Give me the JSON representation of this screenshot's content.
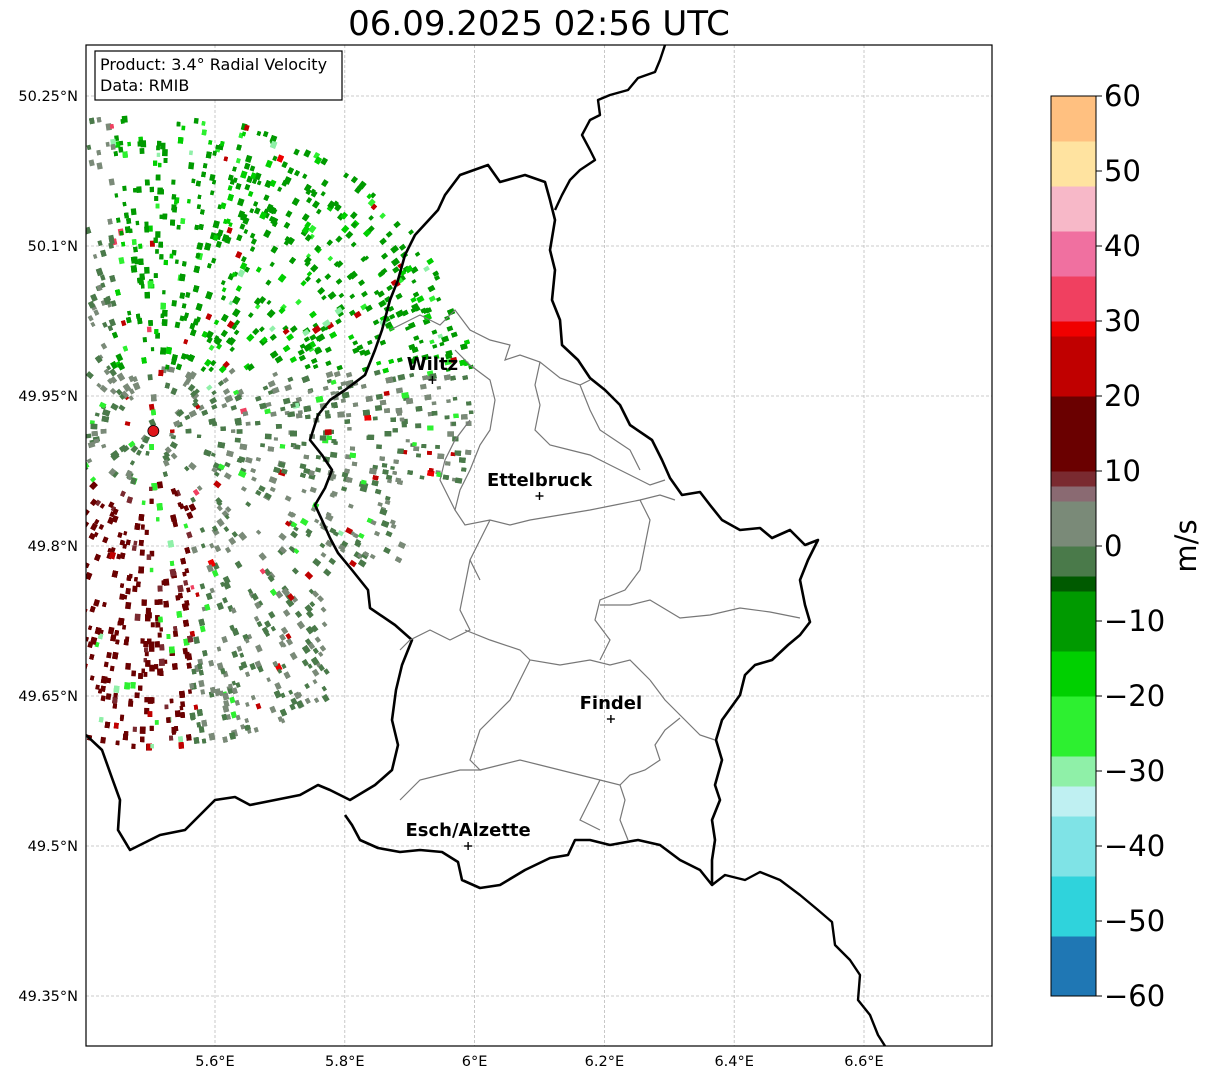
{
  "title": "06.09.2025 02:56 UTC",
  "info_box": {
    "product": "Product: 3.4° Radial Velocity",
    "data": "Data: RMIB"
  },
  "map": {
    "lon_range": [
      5.4,
      6.8
    ],
    "lat_range": [
      49.29,
      50.3
    ],
    "lon_ticks": [
      {
        "value": 5.6,
        "label": "5.6°E"
      },
      {
        "value": 5.8,
        "label": "5.8°E"
      },
      {
        "value": 6.0,
        "label": "6°E"
      },
      {
        "value": 6.2,
        "label": "6.2°E"
      },
      {
        "value": 6.4,
        "label": "6.4°E"
      },
      {
        "value": 6.6,
        "label": "6.6°E"
      }
    ],
    "lat_ticks": [
      {
        "value": 50.25,
        "label": "50.25°N"
      },
      {
        "value": 50.1,
        "label": "50.1°N"
      },
      {
        "value": 49.95,
        "label": "49.95°N"
      },
      {
        "value": 49.8,
        "label": "49.8°N"
      },
      {
        "value": 49.65,
        "label": "49.65°N"
      },
      {
        "value": 49.5,
        "label": "49.5°N"
      },
      {
        "value": 49.35,
        "label": "49.35°N"
      }
    ],
    "radar_site": {
      "lon": 5.505,
      "lat": 49.915,
      "color": "#e0161b"
    },
    "cities": [
      {
        "name": "Wiltz",
        "lon": 5.935,
        "lat": 49.966
      },
      {
        "name": "Ettelbruck",
        "lon": 6.1,
        "lat": 49.85
      },
      {
        "name": "Findel",
        "lon": 6.21,
        "lat": 49.627
      },
      {
        "name": "Esch/Alzette",
        "lon": 5.99,
        "lat": 49.5
      }
    ]
  },
  "colorbar": {
    "label": "m/s",
    "min": -60,
    "max": 60,
    "ticks": [
      60,
      50,
      40,
      30,
      20,
      10,
      0,
      -10,
      -20,
      -30,
      -40,
      -50,
      -60
    ],
    "tick_labels": [
      "60",
      "50",
      "40",
      "30",
      "20",
      "10",
      "0",
      "−10",
      "−20",
      "−30",
      "−40",
      "−50",
      "−60"
    ],
    "stops": [
      {
        "v": -60,
        "c": "#1f77b4"
      },
      {
        "v": -52,
        "c": "#2fd3dc"
      },
      {
        "v": -44,
        "c": "#7fe3e6"
      },
      {
        "v": -36,
        "c": "#bff0f2"
      },
      {
        "v": -33,
        "c": "#8ff0a8"
      },
      {
        "v": -28,
        "c": "#2df030"
      },
      {
        "v": -20,
        "c": "#00d000"
      },
      {
        "v": -14,
        "c": "#009a00"
      },
      {
        "v": -6,
        "c": "#005a00"
      },
      {
        "v": -5,
        "c": "#4a7a4a"
      },
      {
        "v": 0,
        "c": "#7a8a78"
      },
      {
        "v": 5,
        "c": "#8a6a72"
      },
      {
        "v": 8,
        "c": "#7a2a30"
      },
      {
        "v": 9,
        "c": "#6a0000"
      },
      {
        "v": 20,
        "c": "#c00000"
      },
      {
        "v": 28,
        "c": "#f00000"
      },
      {
        "v": 29,
        "c": "#f04060"
      },
      {
        "v": 36,
        "c": "#f070a0"
      },
      {
        "v": 42,
        "c": "#f7b8c8"
      },
      {
        "v": 48,
        "c": "#ffe3a0"
      },
      {
        "v": 54,
        "c": "#ffc080"
      },
      {
        "v": 60,
        "c": "#ff9f50"
      }
    ]
  },
  "colors": {
    "border": "#000000",
    "canton_lines": "#777777",
    "grid": "#bbbbbb"
  }
}
